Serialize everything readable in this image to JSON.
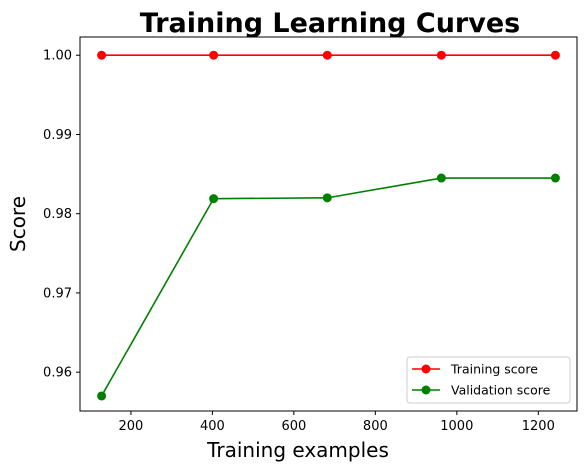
{
  "chart_data": {
    "type": "line",
    "title": "Training Learning Curves",
    "xlabel": "Training examples",
    "ylabel": "Score",
    "xlim": [
      75,
      1295
    ],
    "ylim": [
      0.9551,
      1.0023
    ],
    "xticks": [
      200,
      400,
      600,
      800,
      1000,
      1200
    ],
    "yticks": [
      0.96,
      0.97,
      0.98,
      0.99,
      1.0
    ],
    "ytick_labels": [
      "0.96",
      "0.97",
      "0.98",
      "0.99",
      "1.00"
    ],
    "xtick_labels": [
      "200",
      "400",
      "600",
      "800",
      "1000",
      "1200"
    ],
    "grid": false,
    "legend_position": "bottom-right",
    "x": [
      128,
      403,
      682,
      962,
      1242
    ],
    "series": [
      {
        "name": "Training score",
        "color": "#ff0000",
        "values": [
          1.0,
          1.0,
          1.0,
          1.0,
          1.0
        ]
      },
      {
        "name": "Validation score",
        "color": "#008000",
        "values": [
          0.957,
          0.9819,
          0.982,
          0.9845,
          0.9845
        ]
      }
    ]
  }
}
